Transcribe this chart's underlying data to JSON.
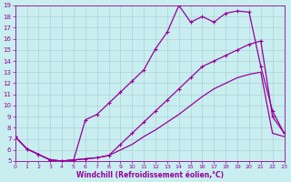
{
  "xlabel": "Windchill (Refroidissement éolien,°C)",
  "background_color": "#c8eef0",
  "grid_color": "#b0d0d8",
  "line_color": "#990099",
  "xlim": [
    0,
    23
  ],
  "ylim": [
    5,
    19
  ],
  "xticks": [
    0,
    1,
    2,
    3,
    4,
    5,
    6,
    7,
    8,
    9,
    10,
    11,
    12,
    13,
    14,
    15,
    16,
    17,
    18,
    19,
    20,
    21,
    22,
    23
  ],
  "yticks": [
    5,
    6,
    7,
    8,
    9,
    10,
    11,
    12,
    13,
    14,
    15,
    16,
    17,
    18,
    19
  ],
  "curve1_x": [
    0,
    1,
    2,
    3,
    4,
    5,
    6,
    7,
    8,
    9,
    10,
    11,
    12,
    13,
    14,
    15,
    16,
    17,
    18,
    19,
    20,
    21,
    22,
    23
  ],
  "curve1_y": [
    7.2,
    6.1,
    5.6,
    5.1,
    5.0,
    5.1,
    8.7,
    9.2,
    10.2,
    11.2,
    12.2,
    13.2,
    15.1,
    16.6,
    19.0,
    17.5,
    18.0,
    17.5,
    18.3,
    18.5,
    18.4,
    13.5,
    9.5,
    7.5
  ],
  "curve2_x": [
    0,
    1,
    2,
    3,
    4,
    5,
    6,
    7,
    8,
    9,
    10,
    11,
    12,
    13,
    14,
    15,
    16,
    17,
    18,
    19,
    20,
    21,
    22,
    23
  ],
  "curve2_y": [
    7.2,
    6.1,
    5.6,
    5.1,
    5.0,
    5.1,
    5.2,
    5.3,
    5.5,
    6.5,
    7.5,
    8.5,
    9.5,
    10.5,
    11.5,
    12.5,
    13.5,
    14.0,
    14.5,
    15.0,
    15.5,
    15.8,
    9.0,
    7.5
  ],
  "curve3_x": [
    0,
    1,
    2,
    3,
    4,
    5,
    6,
    7,
    8,
    9,
    10,
    11,
    12,
    13,
    14,
    15,
    16,
    17,
    18,
    19,
    20,
    21,
    22,
    23
  ],
  "curve3_y": [
    7.2,
    6.1,
    5.6,
    5.1,
    5.0,
    5.1,
    5.2,
    5.3,
    5.5,
    6.0,
    6.5,
    7.2,
    7.8,
    8.5,
    9.2,
    10.0,
    10.8,
    11.5,
    12.0,
    12.5,
    12.8,
    13.0,
    7.5,
    7.2
  ]
}
